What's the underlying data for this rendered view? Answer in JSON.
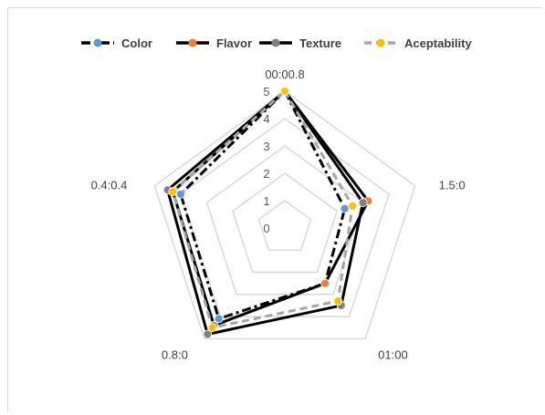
{
  "chart_data": {
    "type": "radar",
    "categories": [
      "00:00.8",
      "1.5:0",
      "01:00",
      "0.8:0",
      "0.4:0.4"
    ],
    "r_ticks": [
      "0",
      "1",
      "2",
      "3",
      "4",
      "5"
    ],
    "rlim": [
      0,
      5
    ],
    "legend_position": "top",
    "grid": true,
    "series": [
      {
        "name": "Color",
        "values": [
          5.0,
          2.3,
          2.5,
          4.1,
          4.0
        ],
        "color": "#000000",
        "marker": "#5b9bd5",
        "dash": "10,4,3,4",
        "width": 3
      },
      {
        "name": "Flavor",
        "values": [
          5.0,
          3.2,
          2.5,
          4.4,
          4.3
        ],
        "color": "#000000",
        "marker": "#ed7d31",
        "dash": "",
        "width": 3
      },
      {
        "name": "Texture",
        "values": [
          5.0,
          3.0,
          3.5,
          4.8,
          4.5
        ],
        "color": "#000000",
        "marker": "#808080",
        "dash": "",
        "width": 3
      },
      {
        "name": "Aceptability",
        "values": [
          5.0,
          2.6,
          3.3,
          4.5,
          4.3
        ],
        "color": "#a6a6a6",
        "marker": "#ffc000",
        "dash": "8,5",
        "width": 3
      }
    ]
  }
}
